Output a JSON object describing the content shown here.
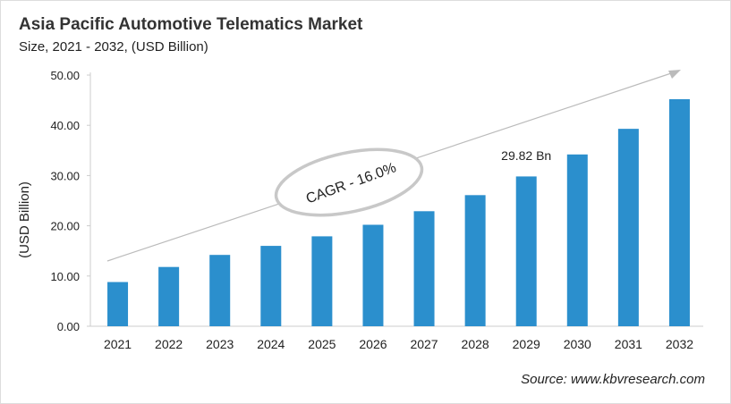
{
  "chart_data": {
    "type": "bar",
    "title": "Asia Pacific Automotive Telematics Market",
    "subtitle": "Size, 2021 - 2032, (USD Billion)",
    "ylabel": "(USD Billion)",
    "xlabel": "",
    "categories": [
      "2021",
      "2022",
      "2023",
      "2024",
      "2025",
      "2026",
      "2027",
      "2028",
      "2029",
      "2030",
      "2031",
      "2032"
    ],
    "values": [
      8.8,
      11.8,
      14.2,
      16.0,
      17.9,
      20.2,
      22.9,
      26.1,
      29.82,
      34.2,
      39.3,
      45.2
    ],
    "ylim": [
      0,
      50
    ],
    "yticks": [
      "0.00",
      "10.00",
      "20.00",
      "30.00",
      "40.00",
      "50.00"
    ],
    "grid": false,
    "bar_color": "#2b8fcd",
    "annotations": {
      "data_label": "29.82 Bn",
      "data_label_category": "2029",
      "cagr": "CAGR - 16.0%"
    },
    "source": "Source: www.kbvresearch.com"
  }
}
